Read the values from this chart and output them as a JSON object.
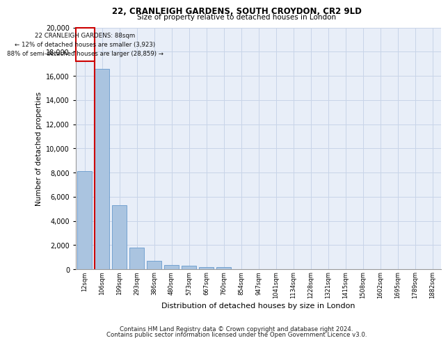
{
  "title1": "22, CRANLEIGH GARDENS, SOUTH CROYDON, CR2 9LD",
  "title2": "Size of property relative to detached houses in London",
  "xlabel": "Distribution of detached houses by size in London",
  "ylabel": "Number of detached properties",
  "categories": [
    "12sqm",
    "106sqm",
    "199sqm",
    "293sqm",
    "386sqm",
    "480sqm",
    "573sqm",
    "667sqm",
    "760sqm",
    "854sqm",
    "947sqm",
    "1041sqm",
    "1134sqm",
    "1228sqm",
    "1321sqm",
    "1415sqm",
    "1508sqm",
    "1602sqm",
    "1695sqm",
    "1789sqm",
    "1882sqm"
  ],
  "values": [
    8100,
    16600,
    5300,
    1800,
    700,
    370,
    280,
    200,
    170,
    0,
    0,
    0,
    0,
    0,
    0,
    0,
    0,
    0,
    0,
    0,
    0
  ],
  "bar_color": "#aac4e0",
  "bar_edge_color": "#6699cc",
  "annotation_line_color": "#cc0000",
  "annotation_text_line1": "22 CRANLEIGH GARDENS: 88sqm",
  "annotation_text_line2": "← 12% of detached houses are smaller (3,923)",
  "annotation_text_line3": "88% of semi-detached houses are larger (28,859) →",
  "ylim": [
    0,
    20000
  ],
  "yticks": [
    0,
    2000,
    4000,
    6000,
    8000,
    10000,
    12000,
    14000,
    16000,
    18000,
    20000
  ],
  "grid_color": "#c8d4e8",
  "background_color": "#e8eef8",
  "footer1": "Contains HM Land Registry data © Crown copyright and database right 2024.",
  "footer2": "Contains public sector information licensed under the Open Government Licence v3.0."
}
